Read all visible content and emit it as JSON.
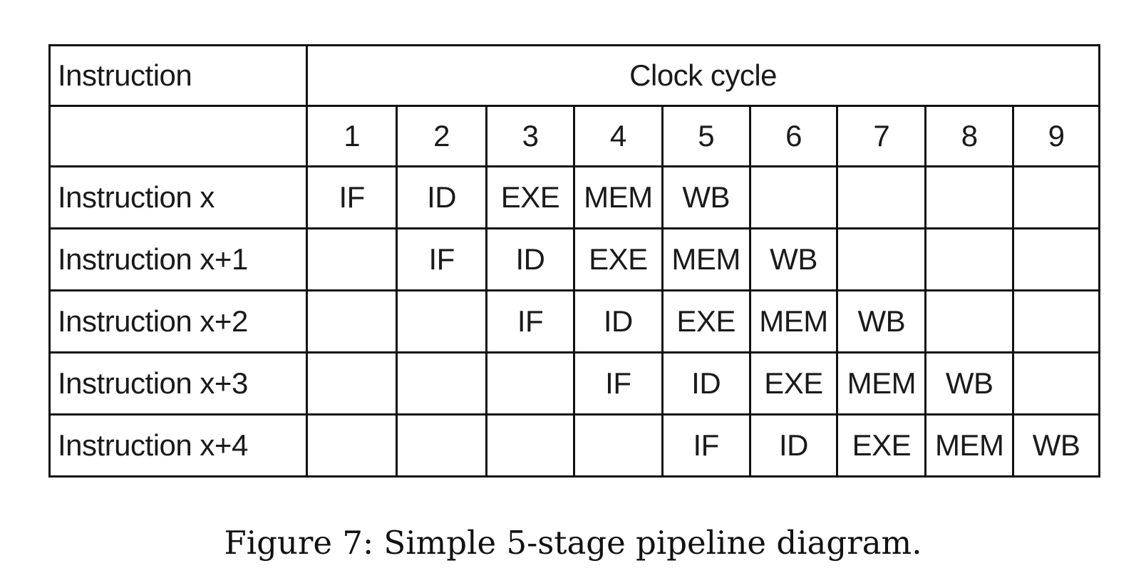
{
  "table": {
    "corner_label": "Instruction",
    "clock_header": "Clock cycle",
    "cycles": [
      "1",
      "2",
      "3",
      "4",
      "5",
      "6",
      "7",
      "8",
      "9"
    ],
    "rows": [
      {
        "label": "Instruction x",
        "stages": [
          "IF",
          "ID",
          "EXE",
          "MEM",
          "WB",
          "",
          "",
          "",
          ""
        ]
      },
      {
        "label": "Instruction x+1",
        "stages": [
          "",
          "IF",
          "ID",
          "EXE",
          "MEM",
          "WB",
          "",
          "",
          ""
        ]
      },
      {
        "label": "Instruction x+2",
        "stages": [
          "",
          "",
          "IF",
          "ID",
          "EXE",
          "MEM",
          "WB",
          "",
          ""
        ]
      },
      {
        "label": "Instruction x+3",
        "stages": [
          "",
          "",
          "",
          "IF",
          "ID",
          "EXE",
          "MEM",
          "WB",
          ""
        ]
      },
      {
        "label": "Instruction x+4",
        "stages": [
          "",
          "",
          "",
          "",
          "IF",
          "ID",
          "EXE",
          "MEM",
          "WB"
        ]
      }
    ]
  },
  "caption": "Figure 7: Simple 5-stage pipeline diagram."
}
